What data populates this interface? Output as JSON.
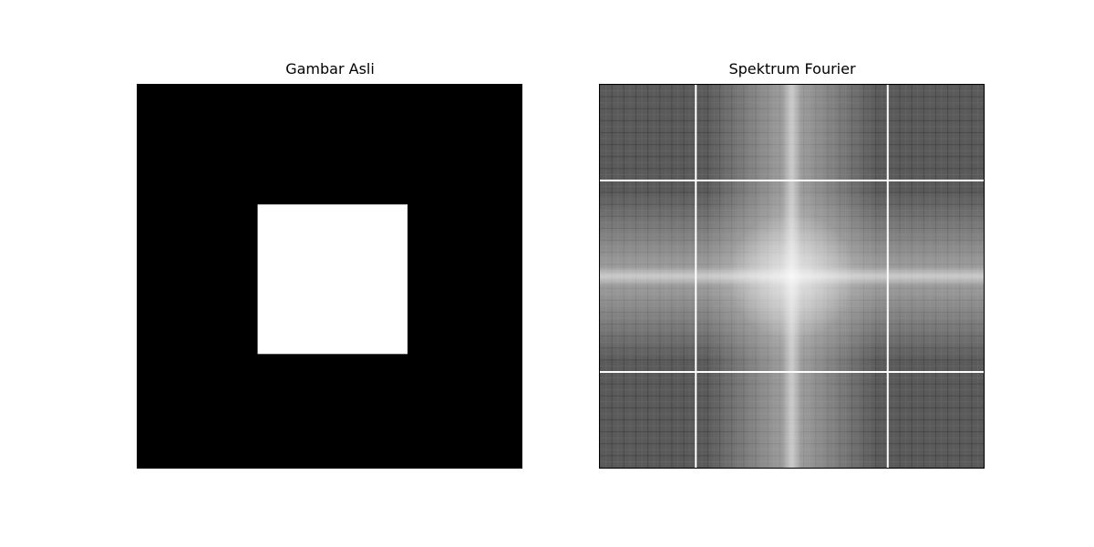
{
  "chart_data": [
    {
      "type": "heatmap",
      "title": "Gambar Asli",
      "colormap": "gray",
      "xlabel": "",
      "ylabel": "",
      "axis": "off",
      "grid_size": [
        256,
        256
      ],
      "background_value": 0,
      "square_value": 1,
      "square_rows": [
        80,
        180
      ],
      "square_cols": [
        80,
        180
      ]
    },
    {
      "type": "heatmap",
      "title": "Spektrum Fourier",
      "colormap": "gray",
      "xlabel": "",
      "ylabel": "",
      "axis": "off",
      "description_source": "log magnitude of the 2D FFT of the original image, shifted"
    }
  ],
  "colors": {
    "background": "#ffffff",
    "square": "#ffffff",
    "image_background": "#000000",
    "spectrum_base": "#5a5a5a"
  }
}
